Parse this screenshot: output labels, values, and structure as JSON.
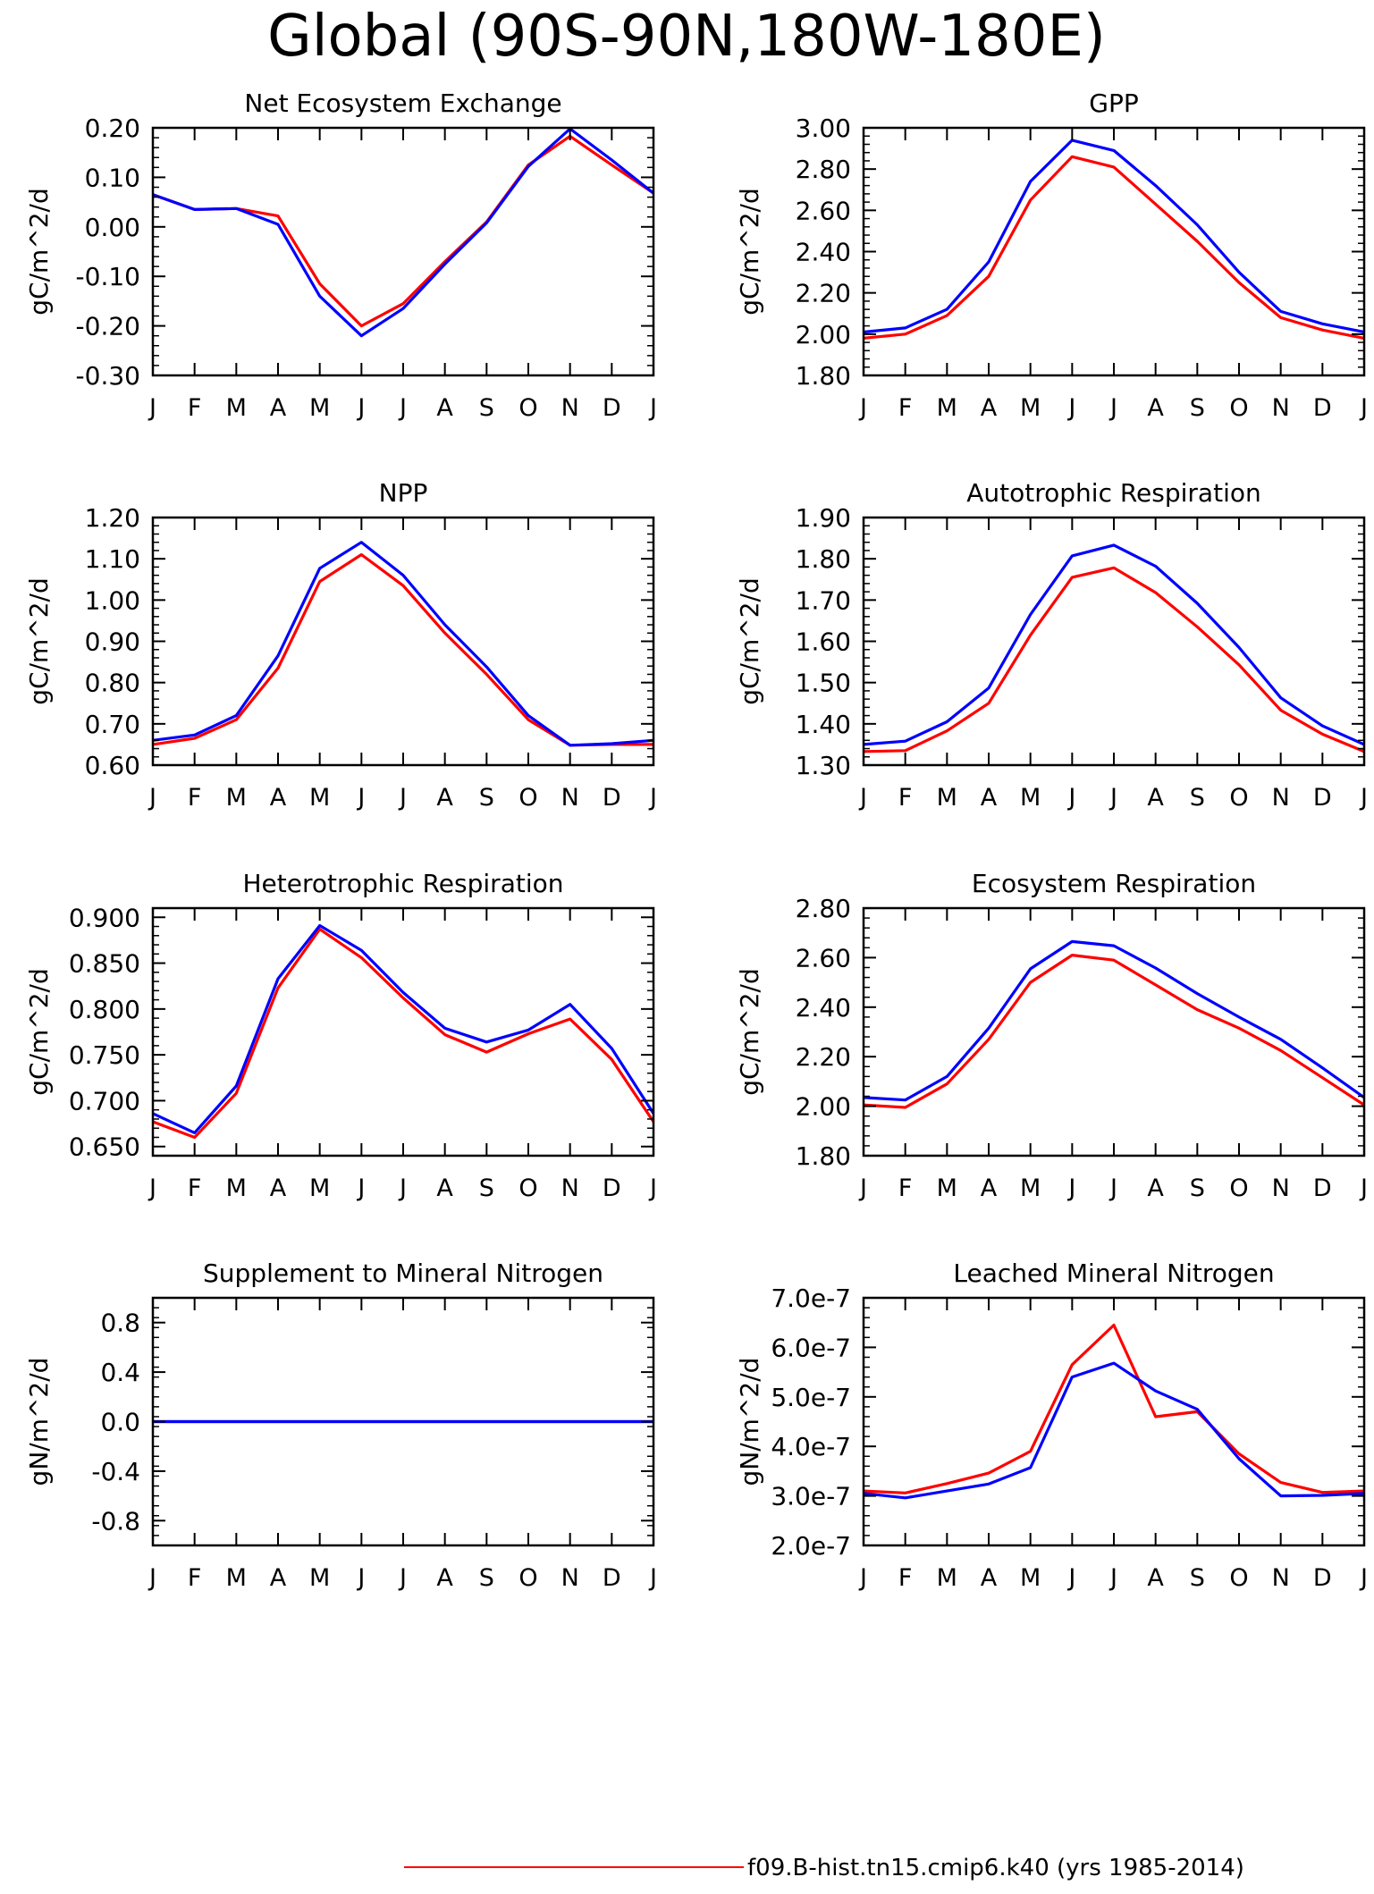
{
  "title": "Global (90S-90N,180W-180E)",
  "colors": {
    "case": "#ff0000",
    "reference": "#0000ff",
    "axis": "#000000"
  },
  "months": [
    "J",
    "F",
    "M",
    "A",
    "M",
    "J",
    "J",
    "A",
    "S",
    "O",
    "N",
    "D",
    "J"
  ],
  "legend": [
    {
      "label": "f09.B-hist.tn15.cmip6.k40 (yrs 1985-2014)",
      "color": "#ff0000"
    }
  ],
  "chart_data": [
    {
      "type": "line",
      "title": "Net Ecosystem Exchange",
      "ylabel": "gC/m^2/d",
      "ylim": [
        -0.3,
        0.2
      ],
      "yticks": [
        "0.20",
        "0.10",
        "0.00",
        "-0.10",
        "-0.20",
        "-0.30"
      ],
      "yvalues": [
        0.2,
        0.1,
        0.0,
        -0.1,
        -0.2,
        -0.3
      ],
      "series": [
        {
          "values": [
            0.065,
            0.035,
            0.037,
            0.022,
            -0.115,
            -0.2,
            -0.155,
            -0.07,
            0.01,
            0.125,
            0.183,
            0.125,
            0.068
          ]
        },
        {
          "values": [
            0.065,
            0.035,
            0.037,
            0.005,
            -0.14,
            -0.22,
            -0.165,
            -0.075,
            0.008,
            0.122,
            0.198,
            0.135,
            0.068
          ]
        }
      ]
    },
    {
      "type": "line",
      "title": "GPP",
      "ylabel": "gC/m^2/d",
      "ylim": [
        1.8,
        3.0
      ],
      "yticks": [
        "3.00",
        "2.80",
        "2.60",
        "2.40",
        "2.20",
        "2.00",
        "1.80"
      ],
      "yvalues": [
        3.0,
        2.8,
        2.6,
        2.4,
        2.2,
        2.0,
        1.8
      ],
      "series": [
        {
          "values": [
            1.98,
            2.0,
            2.09,
            2.28,
            2.65,
            2.86,
            2.81,
            2.63,
            2.45,
            2.25,
            2.08,
            2.02,
            1.98
          ]
        },
        {
          "values": [
            2.01,
            2.03,
            2.12,
            2.35,
            2.74,
            2.94,
            2.89,
            2.72,
            2.53,
            2.3,
            2.11,
            2.05,
            2.01
          ]
        }
      ]
    },
    {
      "type": "line",
      "title": "NPP",
      "ylabel": "gC/m^2/d",
      "ylim": [
        0.6,
        1.2
      ],
      "yticks": [
        "1.20",
        "1.10",
        "1.00",
        "0.90",
        "0.80",
        "0.70",
        "0.60"
      ],
      "yvalues": [
        1.2,
        1.1,
        1.0,
        0.9,
        0.8,
        0.7,
        0.6
      ],
      "series": [
        {
          "values": [
            0.65,
            0.665,
            0.71,
            0.835,
            1.045,
            1.11,
            1.035,
            0.92,
            0.82,
            0.71,
            0.648,
            0.65,
            0.65
          ]
        },
        {
          "values": [
            0.66,
            0.673,
            0.72,
            0.865,
            1.077,
            1.14,
            1.06,
            0.94,
            0.838,
            0.72,
            0.648,
            0.652,
            0.66
          ]
        }
      ]
    },
    {
      "type": "line",
      "title": "Autotrophic Respiration",
      "ylabel": "gC/m^2/d",
      "ylim": [
        1.3,
        1.9
      ],
      "yticks": [
        "1.90",
        "1.80",
        "1.70",
        "1.60",
        "1.50",
        "1.40",
        "1.30"
      ],
      "yvalues": [
        1.9,
        1.8,
        1.7,
        1.6,
        1.5,
        1.4,
        1.3
      ],
      "series": [
        {
          "values": [
            1.333,
            1.335,
            1.383,
            1.45,
            1.615,
            1.755,
            1.778,
            1.718,
            1.635,
            1.543,
            1.433,
            1.375,
            1.333
          ]
        },
        {
          "values": [
            1.35,
            1.358,
            1.405,
            1.487,
            1.665,
            1.807,
            1.833,
            1.782,
            1.692,
            1.585,
            1.463,
            1.395,
            1.35
          ]
        }
      ]
    },
    {
      "type": "line",
      "title": "Heterotrophic Respiration",
      "ylabel": "gC/m^2/d",
      "ylim": [
        0.64,
        0.91
      ],
      "yticks": [
        "0.900",
        "0.850",
        "0.800",
        "0.750",
        "0.700",
        "0.650"
      ],
      "yvalues": [
        0.9,
        0.85,
        0.8,
        0.75,
        0.7,
        0.65
      ],
      "series": [
        {
          "values": [
            0.677,
            0.66,
            0.708,
            0.823,
            0.887,
            0.856,
            0.812,
            0.772,
            0.753,
            0.773,
            0.789,
            0.745,
            0.677
          ]
        },
        {
          "values": [
            0.686,
            0.665,
            0.716,
            0.833,
            0.891,
            0.864,
            0.818,
            0.779,
            0.764,
            0.777,
            0.805,
            0.757,
            0.686
          ]
        }
      ]
    },
    {
      "type": "line",
      "title": "Ecosystem Respiration",
      "ylabel": "gC/m^2/d",
      "ylim": [
        1.8,
        2.8
      ],
      "yticks": [
        "2.80",
        "2.60",
        "2.40",
        "2.20",
        "2.00",
        "1.80"
      ],
      "yvalues": [
        2.8,
        2.6,
        2.4,
        2.2,
        2.0,
        1.8
      ],
      "series": [
        {
          "values": [
            2.005,
            1.995,
            2.09,
            2.27,
            2.5,
            2.61,
            2.59,
            2.49,
            2.39,
            2.315,
            2.225,
            2.115,
            2.005
          ]
        },
        {
          "values": [
            2.035,
            2.025,
            2.12,
            2.315,
            2.555,
            2.665,
            2.648,
            2.558,
            2.455,
            2.36,
            2.27,
            2.155,
            2.035
          ]
        }
      ]
    },
    {
      "type": "line",
      "title": "Supplement to Mineral Nitrogen",
      "ylabel": "gN/m^2/d",
      "ylim": [
        -1.0,
        1.0
      ],
      "yticks": [
        "0.8",
        "0.4",
        "0.0",
        "-0.4",
        "-0.8"
      ],
      "yvalues": [
        0.8,
        0.4,
        0.0,
        -0.4,
        -0.8
      ],
      "series": [
        {
          "values": [
            0,
            0,
            0,
            0,
            0,
            0,
            0,
            0,
            0,
            0,
            0,
            0,
            0
          ]
        },
        {
          "values": [
            0,
            0,
            0,
            0,
            0,
            0,
            0,
            0,
            0,
            0,
            0,
            0,
            0
          ]
        }
      ]
    },
    {
      "type": "line",
      "title": "Leached Mineral Nitrogen",
      "ylabel": "gN/m^2/d",
      "ylim": [
        2e-07,
        7e-07
      ],
      "yticks": [
        "7.0e-7",
        "6.0e-7",
        "5.0e-7",
        "4.0e-7",
        "3.0e-7",
        "2.0e-7"
      ],
      "yvalues": [
        7e-07,
        6e-07,
        5e-07,
        4e-07,
        3e-07,
        2e-07
      ],
      "series": [
        {
          "values": [
            3.1e-07,
            3.06e-07,
            3.25e-07,
            3.46e-07,
            3.9e-07,
            5.65e-07,
            6.45e-07,
            4.6e-07,
            4.7e-07,
            3.85e-07,
            3.27e-07,
            3.07e-07,
            3.1e-07
          ]
        },
        {
          "values": [
            3.05e-07,
            2.96e-07,
            3.1e-07,
            3.24e-07,
            3.57e-07,
            5.4e-07,
            5.68e-07,
            5.12e-07,
            4.75e-07,
            3.75e-07,
            3e-07,
            3.01e-07,
            3.05e-07
          ]
        }
      ]
    }
  ]
}
